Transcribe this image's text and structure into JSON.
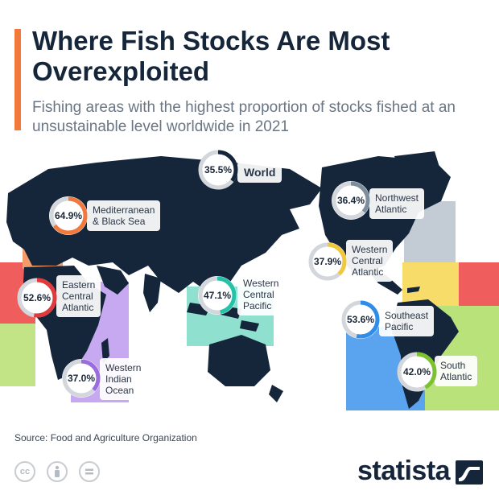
{
  "header": {
    "title": "Where Fish Stocks Are Most Overexploited",
    "subtitle": "Fishing areas with the highest proportion of stocks fished at an unsustainable level worldwide in 2021"
  },
  "chart_data": {
    "type": "donut-map",
    "unit": "%",
    "regions": [
      {
        "id": "world",
        "name": "World",
        "value": 35.5,
        "display": "35.5%",
        "color": "#15253a"
      },
      {
        "id": "northwest-atlantic",
        "name": "Northwest Atlantic",
        "lines": [
          "Northwest",
          "Atlantic"
        ],
        "value": 36.4,
        "display": "36.4%",
        "color": "#7f8e9c"
      },
      {
        "id": "mediterranean",
        "name": "Mediterranean & Black Sea",
        "lines": [
          "Mediterranean",
          "& Black Sea"
        ],
        "value": 64.9,
        "display": "64.9%",
        "color": "#f2793b"
      },
      {
        "id": "western-central-atlantic",
        "name": "Western Central Atlantic",
        "lines": [
          "Western",
          "Central",
          "Atlantic"
        ],
        "value": 37.9,
        "display": "37.9%",
        "color": "#f1c83c"
      },
      {
        "id": "eastern-central-atlantic",
        "name": "Eastern Central Atlantic",
        "lines": [
          "Eastern",
          "Central",
          "Atlantic"
        ],
        "value": 52.6,
        "display": "52.6%",
        "color": "#e23a3a"
      },
      {
        "id": "western-central-pacific",
        "name": "Western Central Pacific",
        "lines": [
          "Western",
          "Central",
          "Pacific"
        ],
        "value": 47.1,
        "display": "47.1%",
        "color": "#25c1a8"
      },
      {
        "id": "southeast-pacific",
        "name": "Southeast Pacific",
        "lines": [
          "Southeast",
          "Pacific"
        ],
        "value": 53.6,
        "display": "53.6%",
        "color": "#2f8ce8"
      },
      {
        "id": "south-atlantic",
        "name": "South Atlantic",
        "lines": [
          "South",
          "Atlantic"
        ],
        "value": 42.0,
        "display": "42.0%",
        "color": "#7cc22f"
      },
      {
        "id": "western-indian-ocean",
        "name": "Western Indian Ocean",
        "lines": [
          "Western",
          "Indian",
          "Ocean"
        ],
        "value": 37.0,
        "display": "37.0%",
        "color": "#9b6be0"
      }
    ]
  },
  "footer": {
    "source": "Source: Food and Agriculture Organization",
    "brand": "statista",
    "license_icons": [
      "cc-icon",
      "attribution-icon",
      "no-derivatives-icon"
    ]
  }
}
